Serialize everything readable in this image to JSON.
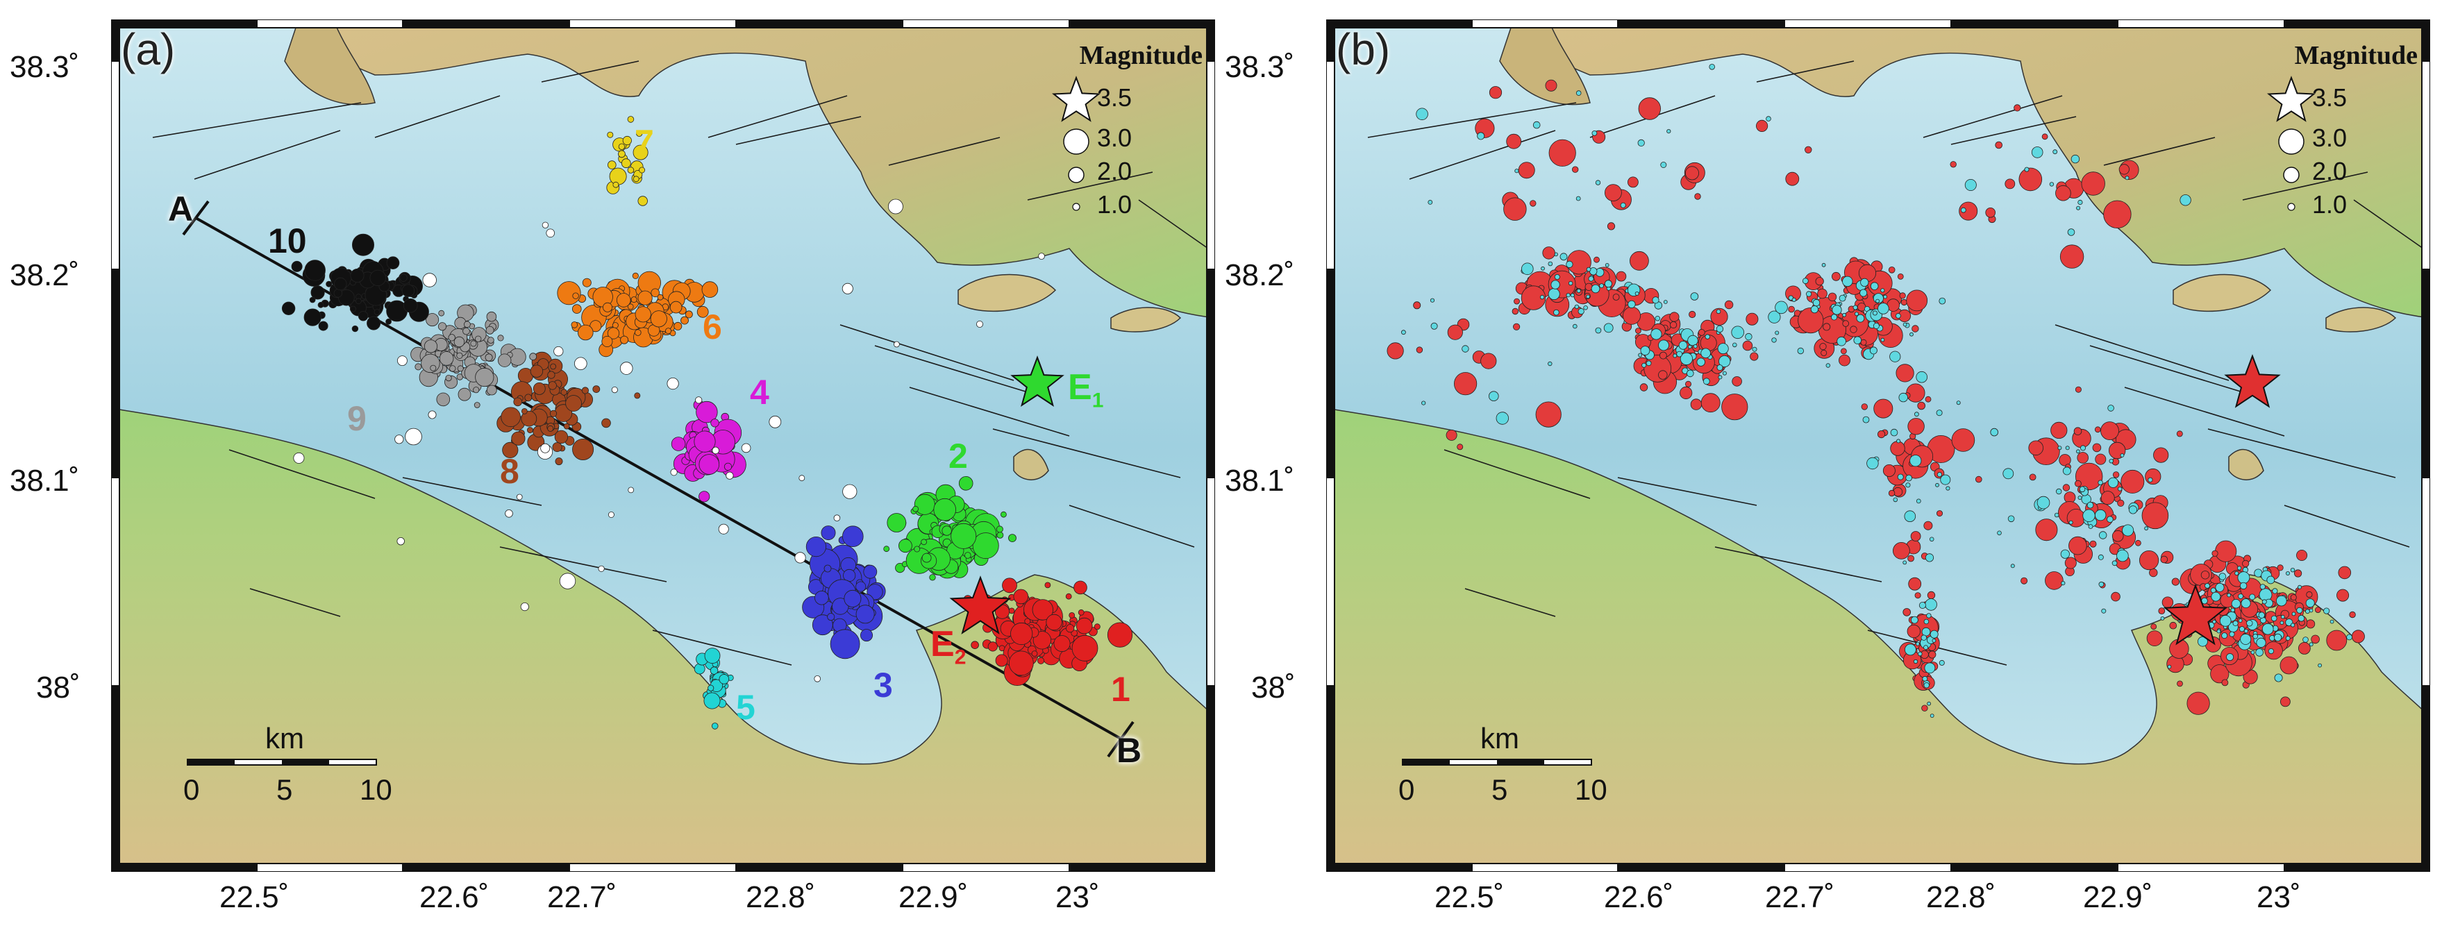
{
  "panels": [
    {
      "id": "a",
      "tag": "(a)",
      "legend": {
        "title": "Magnitude",
        "items": [
          "3.5",
          "3.0",
          "2.0",
          "1.0"
        ]
      },
      "scale": {
        "unit": "km",
        "ticks": [
          "0",
          "5",
          "10"
        ]
      },
      "profile": {
        "start": "A",
        "end": "B"
      },
      "events": [
        {
          "name": "E",
          "sub": "1",
          "color": "#2fd92f"
        },
        {
          "name": "E",
          "sub": "2",
          "color": "#e02020"
        }
      ],
      "clusters": [
        {
          "label": "1",
          "color": "#e02020"
        },
        {
          "label": "2",
          "color": "#2fd92f"
        },
        {
          "label": "3",
          "color": "#3b3bd6"
        },
        {
          "label": "4",
          "color": "#d81bd8"
        },
        {
          "label": "5",
          "color": "#22d4d4"
        },
        {
          "label": "6",
          "color": "#ee7a12"
        },
        {
          "label": "7",
          "color": "#e8d21a"
        },
        {
          "label": "8",
          "color": "#a0461e"
        },
        {
          "label": "9",
          "color": "#9a9a9a"
        },
        {
          "label": "10",
          "color": "#111111"
        }
      ]
    },
    {
      "id": "b",
      "tag": "(b)",
      "legend": {
        "title": "Magnitude",
        "items": [
          "3.5",
          "3.0",
          "2.0",
          "1.0"
        ]
      },
      "scale": {
        "unit": "km",
        "ticks": [
          "0",
          "5",
          "10"
        ]
      },
      "events": [
        {
          "color": "#e03030"
        },
        {
          "color": "#e03030"
        }
      ],
      "point_colors": [
        "#e33b3b",
        "#5fd8e0"
      ]
    }
  ],
  "axes": {
    "lat_ticks": [
      "38.3˚",
      "38.2˚",
      "38.1˚",
      "38˚"
    ],
    "lon_ticks": [
      "22.5˚",
      "22.6˚",
      "22.7˚",
      "22.8˚",
      "22.9˚",
      "23˚"
    ]
  },
  "colors": {
    "sea_deep": "#9fd0e0",
    "sea_shallow": "#cbe8f0",
    "land_low": "#9fd27a",
    "land_high": "#d8c08a",
    "frame": "#111111"
  }
}
